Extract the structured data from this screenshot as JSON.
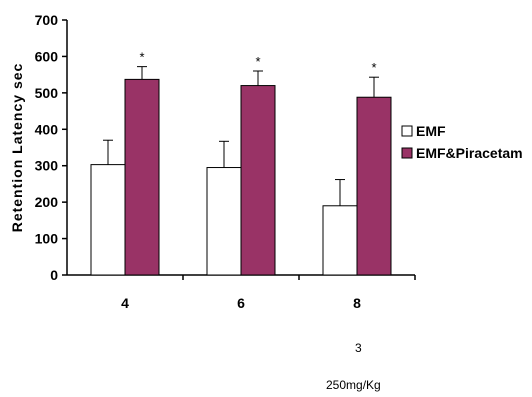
{
  "chart_data": {
    "type": "bar",
    "title": "",
    "xlabel": "",
    "ylabel": "Retention Latency sec",
    "ylim": [
      0,
      700
    ],
    "yticks": [
      0,
      100,
      200,
      300,
      400,
      500,
      600,
      700
    ],
    "categories": [
      "4",
      "6",
      "8"
    ],
    "series": [
      {
        "name": "EMF",
        "values": [
          303,
          295,
          190
        ],
        "errors": [
          67,
          72,
          72
        ],
        "color": "#ffffff",
        "stroke": "#000000"
      },
      {
        "name": "EMF&Piracetam",
        "values": [
          537,
          520,
          488
        ],
        "errors": [
          35,
          40,
          55
        ],
        "color": "#993366",
        "stroke": "#000000"
      }
    ],
    "annotations": [
      "*",
      "*",
      "*"
    ],
    "legend": {
      "placement": "right"
    },
    "grid": false
  },
  "notes": {
    "line1": "3",
    "line2": "250mg/Kg"
  }
}
